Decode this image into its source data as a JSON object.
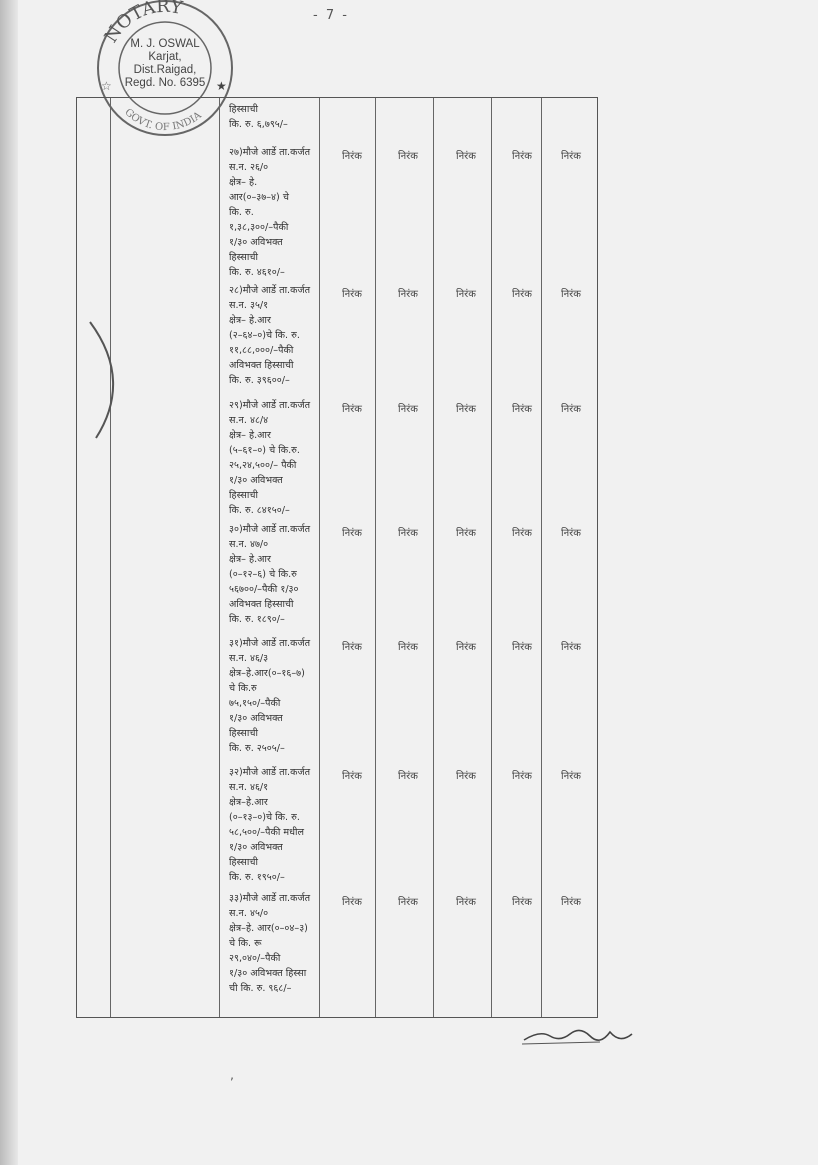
{
  "page_number": "- 7 -",
  "stamp": {
    "title": "NOTARY",
    "name": "M. J. OSWAL",
    "city": "Karjat,",
    "district": "Dist.Raigad,",
    "regd": "Regd. No. 6395",
    "bottom": "GOVT. OF INDIA"
  },
  "nil_label": "निरंक",
  "entries": [
    {
      "lines": [
        "हिस्साची",
        "कि. रु. ६,७९५/–"
      ],
      "nil": false
    },
    {
      "lines": [
        "२७)मौजे आर्डे ता.कर्जत",
        "स.न. २६/०",
        "क्षेत्र– हे.",
        "आर(०–३७–४) चे",
        "कि. रु.",
        "१,३८,३००/–पैकी",
        "१/३० अविभक्त",
        "हिस्साची",
        "कि. रु. ४६१०/–"
      ],
      "nil": true
    },
    {
      "lines": [
        "२८)मौजे आर्डे ता.कर्जत",
        "स.न. ३५/१",
        "क्षेत्र– हे.आर",
        "(२–६४–०)चे कि. रु.",
        "११,८८,०००/–पैकी",
        "अविभक्त हिस्साची",
        " कि. रु. ३९६००/–"
      ],
      "nil": true
    },
    {
      "lines": [
        "२९)मौजे आर्डे ता.कर्जत",
        "स.न. ४८/४",
        "क्षेत्र– हे.आर",
        "(५–६१–०) चे कि.रु.",
        "२५,२४,५००/– पैकी",
        "१/३० अविभक्त",
        "हिस्साची",
        "कि. रु. ८४१५०/–"
      ],
      "nil": true
    },
    {
      "lines": [
        "३०)मौजे आर्डे ता.कर्जत",
        "स.न. ४७/०",
        "क्षेत्र– हे.आर",
        "(०–१२–६) चे कि.रु",
        "५६७००/–पैकी १/३०",
        "अविभक्त हिस्साची",
        "कि. रु. १८९०/–"
      ],
      "nil": true
    },
    {
      "lines": [
        "३१)मौजे आर्डे ता.कर्जत",
        "स.न. ४६/३",
        "क्षेत्र–हे.आर(०–१६–७)",
        " चे कि.रु",
        "७५,१५०/–पैकी",
        "१/३० अविभक्त",
        "हिस्साची",
        "कि. रु. २५०५/–"
      ],
      "nil": true
    },
    {
      "lines": [
        "३२)मौजे आर्डे ता.कर्जत",
        "स.न. ४६/१",
        "क्षेत्र–हे.आर",
        "(०–१३–०)चे कि. रु.",
        "५८,५००/–पैकी मधील",
        "१/३० अविभक्त",
        "हिस्साची",
        "कि. रु. १९५०/–"
      ],
      "nil": true
    },
    {
      "lines": [
        "३३)मौजे आर्डे ता.कर्जत",
        "स.न. ४५/०",
        "क्षेत्र–हे. आर(०–०४–३)",
        "चे कि. रू",
        "२९,०४०/–पैकी",
        "१/३० अविभक्त हिस्सा",
        "ची कि. रु. ९६८/–"
      ],
      "nil": true
    }
  ]
}
